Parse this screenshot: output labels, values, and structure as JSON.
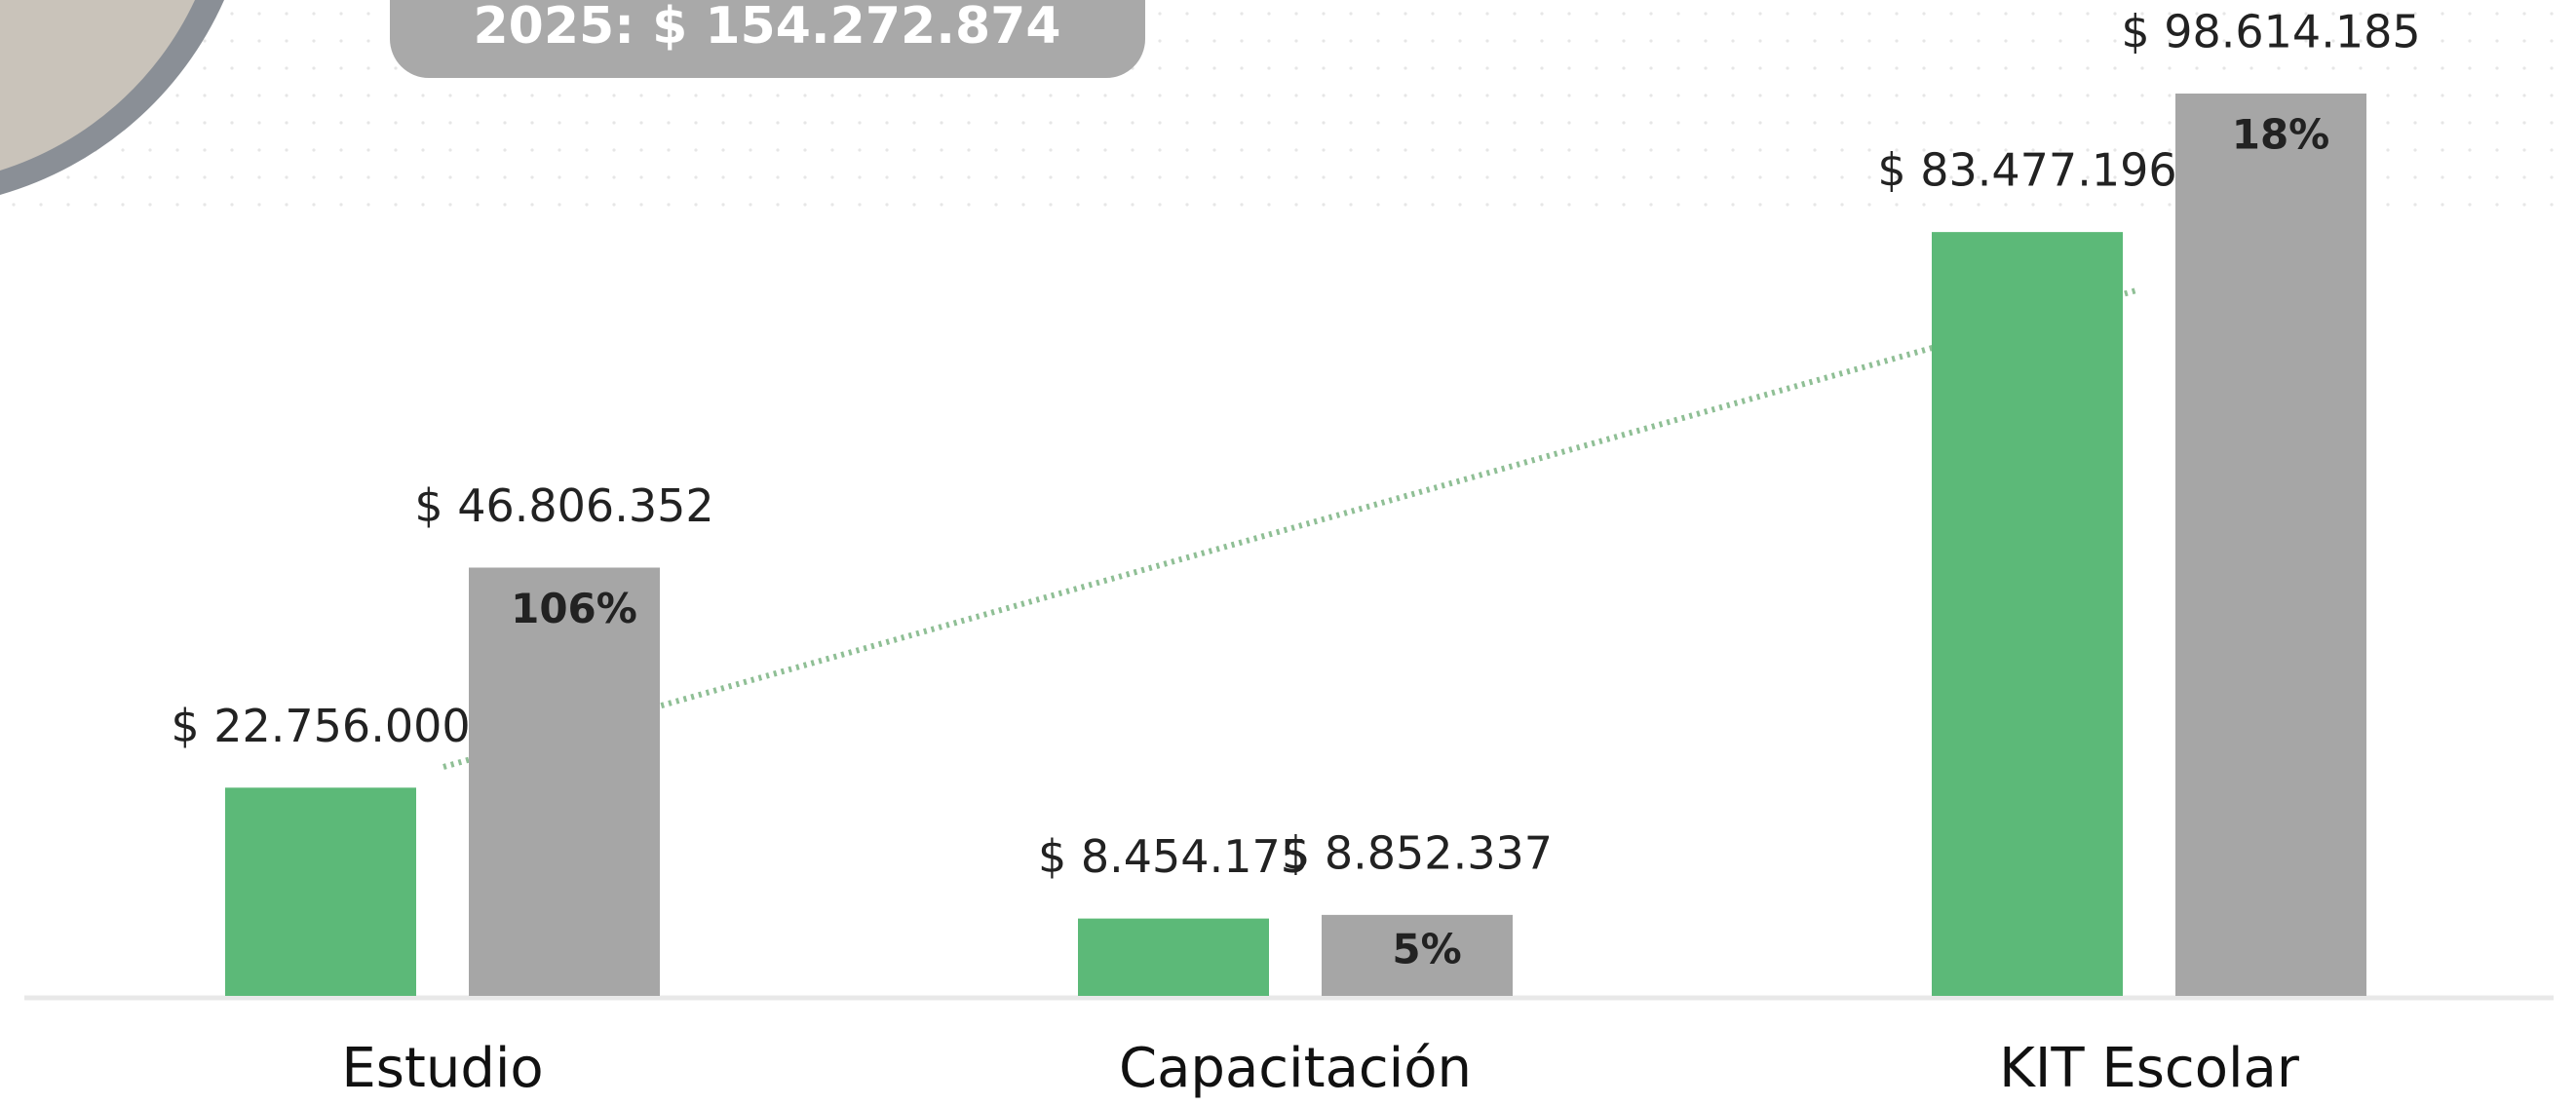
{
  "chart_data": {
    "type": "bar",
    "subtitle": "2025: $ 154.272.874",
    "categories": [
      "Estudio",
      "Capacitación",
      "KIT Escolar"
    ],
    "series": [
      {
        "color": "#5cb978",
        "values": [
          22756000,
          8454175,
          83477196
        ],
        "value_labels": [
          "$ 22.756.000",
          "$ 8.454.175",
          "$ 83.477.196"
        ]
      },
      {
        "color": "#a6a6a6",
        "values": [
          46806352,
          8852337,
          98614185
        ],
        "value_labels": [
          "$ 46.806.352",
          "$ 8.852.337",
          "$ 98.614.185"
        ]
      }
    ],
    "annotations": [
      "106%",
      "5%",
      "18%"
    ]
  }
}
